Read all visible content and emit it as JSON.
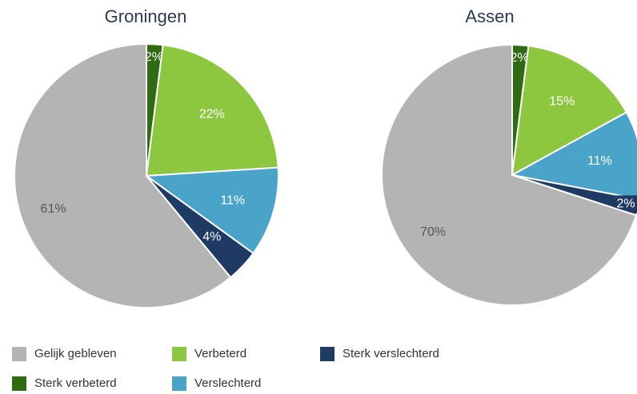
{
  "chart_data": [
    {
      "type": "pie",
      "title": "Groningen",
      "categories": [
        "Sterk verbeterd",
        "Verbeterd",
        "Verslechterd",
        "Sterk verslechterd",
        "Gelijk gebleven"
      ],
      "values": [
        2,
        22,
        11,
        4,
        61
      ],
      "value_labels": [
        "2%",
        "22%",
        "11%",
        "4%",
        "61%"
      ],
      "colors": [
        "#2e6b12",
        "#8dc63f",
        "#4aa3c8",
        "#1f3b63",
        "#b4b4b4"
      ]
    },
    {
      "type": "pie",
      "title": "Assen",
      "categories": [
        "Sterk verbeterd",
        "Verbeterd",
        "Verslechterd",
        "Sterk verslechterd",
        "Gelijk gebleven"
      ],
      "values": [
        2,
        15,
        11,
        2,
        70
      ],
      "value_labels": [
        "2%",
        "15%",
        "11%",
        "2%",
        "70%"
      ],
      "colors": [
        "#2e6b12",
        "#8dc63f",
        "#4aa3c8",
        "#1f3b63",
        "#b4b4b4"
      ]
    }
  ]
}
